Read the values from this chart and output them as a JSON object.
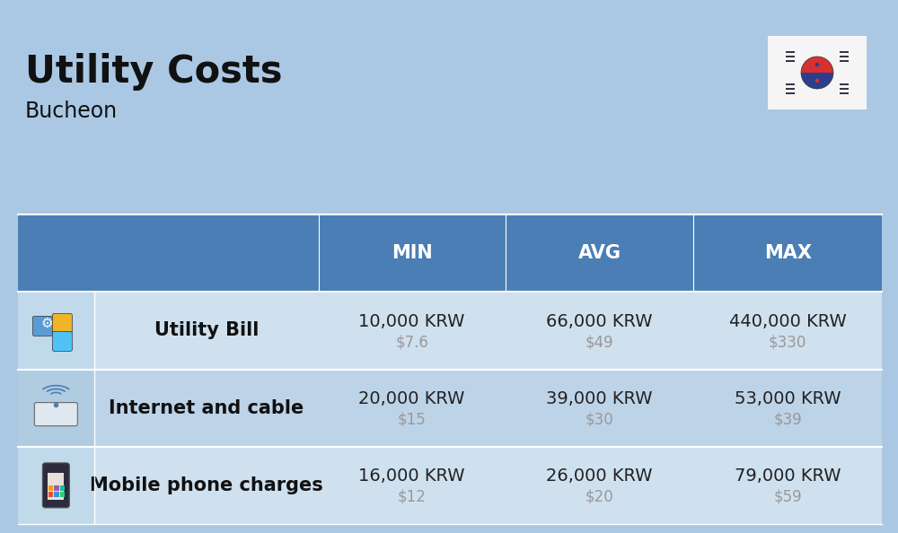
{
  "title": "Utility Costs",
  "subtitle": "Bucheon",
  "background_color": "#aac8e4",
  "header_color": "#4a7eb5",
  "header_text_color": "#ffffff",
  "row_light": "#cfe0ef",
  "row_dark": "#bdd3e8",
  "icon_col_bg_light": "#c0d9eb",
  "icon_col_bg_dark": "#b0cce0",
  "divider_color": "#ffffff",
  "columns_header": [
    "MIN",
    "AVG",
    "MAX"
  ],
  "rows": [
    {
      "label": "Utility Bill",
      "min_krw": "10,000 KRW",
      "min_usd": "$7.6",
      "avg_krw": "66,000 KRW",
      "avg_usd": "$49",
      "max_krw": "440,000 KRW",
      "max_usd": "$330"
    },
    {
      "label": "Internet and cable",
      "min_krw": "20,000 KRW",
      "min_usd": "$15",
      "avg_krw": "39,000 KRW",
      "avg_usd": "$30",
      "max_krw": "53,000 KRW",
      "max_usd": "$39"
    },
    {
      "label": "Mobile phone charges",
      "min_krw": "16,000 KRW",
      "min_usd": "$12",
      "avg_krw": "26,000 KRW",
      "avg_usd": "$20",
      "max_krw": "79,000 KRW",
      "max_usd": "$59"
    }
  ],
  "title_fontsize": 30,
  "subtitle_fontsize": 17,
  "header_fontsize": 15,
  "label_fontsize": 15,
  "value_fontsize": 14,
  "usd_fontsize": 12,
  "usd_color": "#999999",
  "label_color": "#111111",
  "value_color": "#222222",
  "flag_box_color": "#f5f5f5",
  "flag_red": "#d63031",
  "flag_blue": "#2d3e8c",
  "flag_dark": "#1a1a2e"
}
